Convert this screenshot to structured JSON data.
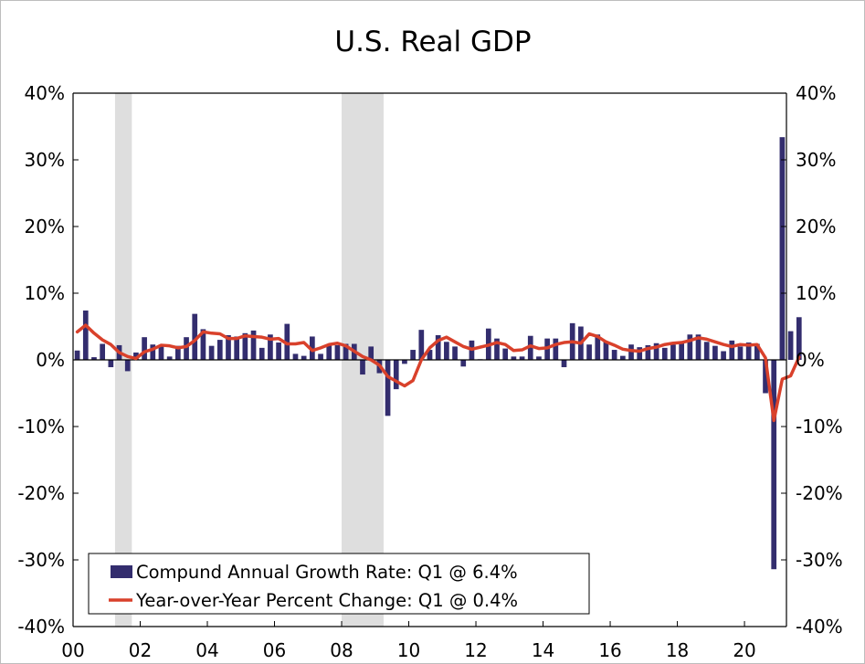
{
  "colors": {
    "bar": "#332D6E",
    "line": "#D9412B",
    "recession": "#DEDEDE",
    "axis": "#000000",
    "background": "#FFFFFF"
  },
  "chart_data": {
    "type": "bar",
    "title": "U.S. Real GDP",
    "xlabel": "",
    "ylabel": "",
    "ylim": [
      -40,
      40
    ],
    "y_ticks": [
      40,
      30,
      20,
      10,
      0,
      -10,
      -20,
      -30,
      -40
    ],
    "y_tick_labels": [
      "40%",
      "30%",
      "20%",
      "10%",
      "0%",
      "-10%",
      "-20%",
      "-30%",
      "-40%"
    ],
    "x_range": [
      2000.0,
      2021.25
    ],
    "x_tick_values": [
      2000,
      2002,
      2004,
      2006,
      2008,
      2010,
      2012,
      2014,
      2016,
      2018,
      2020
    ],
    "x_tick_labels": [
      "00",
      "02",
      "04",
      "06",
      "08",
      "10",
      "12",
      "14",
      "16",
      "18",
      "20"
    ],
    "recessions": [
      {
        "start": 2001.25,
        "end": 2001.75
      },
      {
        "start": 2008.0,
        "end": 2009.25
      }
    ],
    "legend": {
      "placement": "bottom-left",
      "entries": [
        "Compund Annual Growth Rate: Q1 @ 6.4%",
        "Year-over-Year Percent Change: Q1 @ 0.4%"
      ]
    },
    "start_quarter": "2000Q1",
    "series": [
      {
        "name": "Compund Annual Growth Rate",
        "kind": "bar",
        "values": [
          1.4,
          7.4,
          0.4,
          2.4,
          -1.1,
          2.2,
          -1.7,
          1.1,
          3.4,
          2.3,
          2.0,
          0.5,
          2.1,
          3.4,
          6.9,
          4.6,
          2.1,
          3.0,
          3.7,
          3.5,
          4.0,
          4.4,
          1.8,
          3.8,
          2.6,
          5.4,
          0.9,
          0.6,
          3.5,
          0.9,
          2.3,
          2.2,
          2.4,
          2.4,
          -2.2,
          2.0,
          -2.0,
          -8.4,
          -4.4,
          -0.6,
          1.5,
          4.5,
          1.5,
          3.7,
          2.7,
          2.0,
          -1.0,
          2.9,
          0.1,
          4.7,
          3.2,
          1.7,
          0.5,
          0.5,
          3.6,
          0.5,
          3.2,
          3.2,
          -1.1,
          5.5,
          5.0,
          2.3,
          3.8,
          2.7,
          1.5,
          0.6,
          2.3,
          1.9,
          2.2,
          2.5,
          1.8,
          2.3,
          2.8,
          3.8,
          3.8,
          2.7,
          2.1,
          1.3,
          2.9,
          2.0,
          2.6,
          2.4,
          -5.0,
          -31.4,
          33.4,
          4.3,
          6.4
        ]
      },
      {
        "name": "Year-over-Year Percent Change",
        "kind": "line",
        "values": [
          4.2,
          5.2,
          4.0,
          3.0,
          2.3,
          1.1,
          0.5,
          0.2,
          1.2,
          1.6,
          2.2,
          2.1,
          1.8,
          2.0,
          2.9,
          4.2,
          4.0,
          3.9,
          3.2,
          3.2,
          3.6,
          3.5,
          3.4,
          3.1,
          3.2,
          2.4,
          2.4,
          2.6,
          1.4,
          1.8,
          2.3,
          2.5,
          2.1,
          1.3,
          0.5,
          0.0,
          -0.8,
          -2.5,
          -3.2,
          -3.9,
          -3.1,
          0.0,
          1.8,
          2.9,
          3.4,
          2.7,
          2.0,
          1.6,
          1.9,
          2.2,
          2.6,
          2.3,
          1.4,
          1.5,
          2.1,
          1.7,
          1.8,
          2.3,
          2.6,
          2.7,
          2.5,
          3.9,
          3.5,
          2.7,
          2.2,
          1.6,
          1.4,
          1.3,
          1.7,
          1.9,
          2.3,
          2.5,
          2.6,
          2.9,
          3.3,
          3.1,
          2.7,
          2.3,
          2.0,
          2.3,
          2.2,
          2.3,
          0.3,
          -9.1,
          -2.9,
          -2.4,
          0.4
        ]
      }
    ]
  }
}
